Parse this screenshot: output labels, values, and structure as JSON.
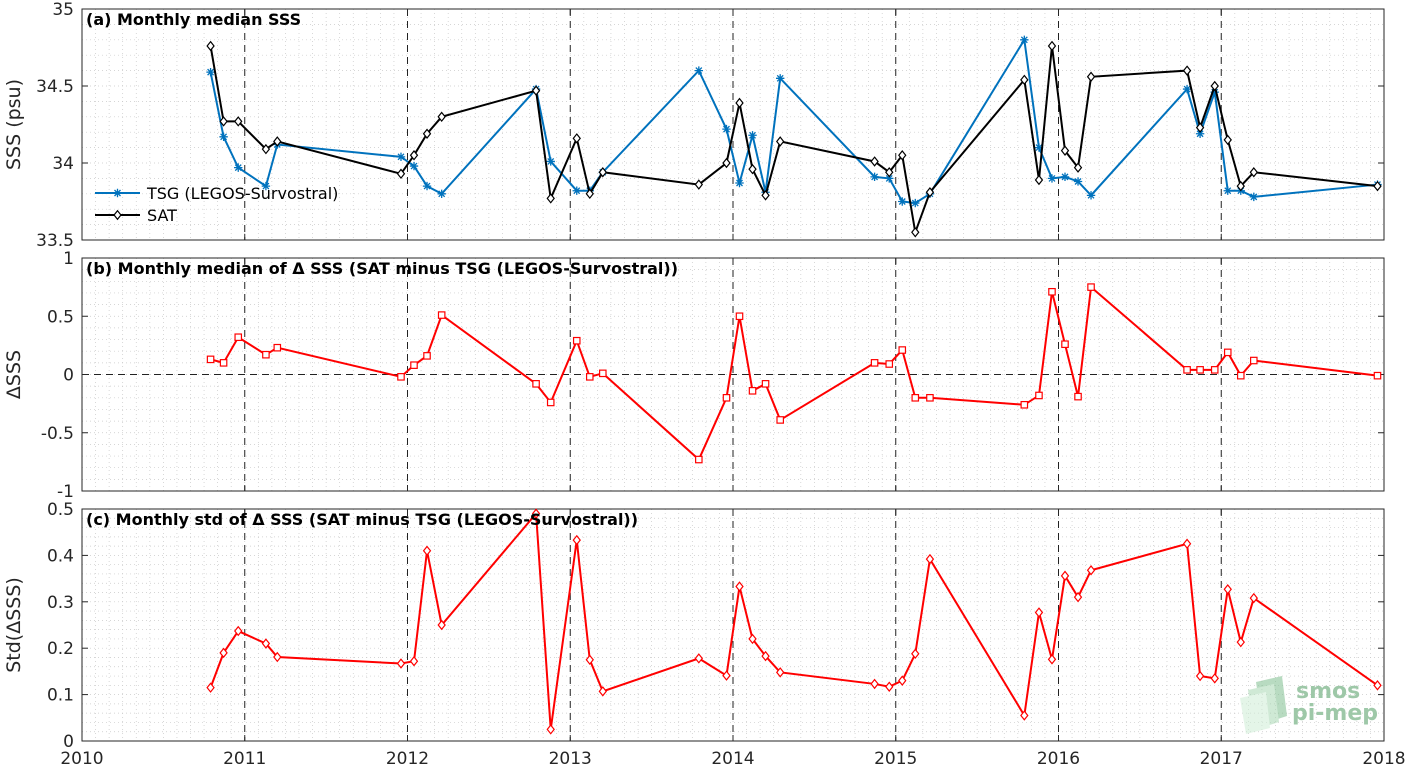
{
  "logo": {
    "line1": "smos",
    "line2": "pi-mep"
  },
  "x_axis": {
    "ticks": [
      2010,
      2011,
      2012,
      2013,
      2014,
      2015,
      2016,
      2017,
      2018
    ],
    "tick_labels": [
      "2010",
      "2011",
      "2012",
      "2013",
      "2014",
      "2015",
      "2016",
      "2017",
      "2018"
    ],
    "xlim": [
      2010,
      2018
    ]
  },
  "chart_data": [
    {
      "type": "line",
      "title": "(a) Monthly median SSS",
      "xlabel": "",
      "ylabel": "SSS (psu)",
      "ylim": [
        33.5,
        35
      ],
      "yticks": [
        33.5,
        34,
        34.5,
        35
      ],
      "ytick_labels": [
        "33.5",
        "34",
        "34.5",
        "35"
      ],
      "grid": true,
      "legend": "left",
      "series": [
        {
          "name": "TSG (LEGOS-Survostral)",
          "color": "#0072BD",
          "marker": "asterisk",
          "x": [
            2010.79,
            2010.87,
            2010.96,
            2011.13,
            2011.2,
            2011.96,
            2012.04,
            2012.12,
            2012.21,
            2012.79,
            2012.88,
            2013.04,
            2013.12,
            2013.2,
            2013.79,
            2013.96,
            2014.04,
            2014.12,
            2014.2,
            2014.29,
            2014.87,
            2014.96,
            2015.04,
            2015.12,
            2015.21,
            2015.79,
            2015.88,
            2015.96,
            2016.04,
            2016.12,
            2016.2,
            2016.79,
            2016.87,
            2016.96,
            2017.04,
            2017.12,
            2017.2,
            2017.96
          ],
          "y": [
            34.59,
            34.17,
            33.97,
            33.85,
            34.12,
            34.04,
            33.98,
            33.85,
            33.8,
            34.48,
            34.01,
            33.82,
            33.82,
            33.94,
            34.6,
            34.22,
            33.87,
            34.18,
            33.81,
            34.55,
            33.91,
            33.9,
            33.75,
            33.74,
            33.8,
            34.8,
            34.1,
            33.9,
            33.91,
            33.88,
            33.79,
            34.48,
            34.19,
            34.46,
            33.82,
            33.82,
            33.78,
            33.86
          ]
        },
        {
          "name": "SAT",
          "color": "#000000",
          "marker": "diamond",
          "x": [
            2010.79,
            2010.87,
            2010.96,
            2011.13,
            2011.2,
            2011.96,
            2012.04,
            2012.12,
            2012.21,
            2012.79,
            2012.88,
            2013.04,
            2013.12,
            2013.2,
            2013.79,
            2013.96,
            2014.04,
            2014.12,
            2014.2,
            2014.29,
            2014.87,
            2014.96,
            2015.04,
            2015.12,
            2015.21,
            2015.79,
            2015.88,
            2015.96,
            2016.04,
            2016.12,
            2016.2,
            2016.79,
            2016.87,
            2016.96,
            2017.04,
            2017.12,
            2017.2,
            2017.96
          ],
          "y": [
            34.76,
            34.27,
            34.27,
            34.09,
            34.14,
            33.93,
            34.05,
            34.19,
            34.3,
            34.47,
            33.77,
            34.16,
            33.8,
            33.94,
            33.86,
            34,
            34.39,
            33.96,
            33.79,
            34.14,
            34.01,
            33.94,
            34.05,
            33.55,
            33.81,
            34.54,
            33.89,
            34.76,
            34.08,
            33.97,
            34.56,
            34.6,
            34.23,
            34.5,
            34.15,
            33.85,
            33.94,
            33.85
          ]
        }
      ]
    },
    {
      "type": "line",
      "title": "(b) Monthly median of Δ SSS (SAT minus TSG (LEGOS-Survostral))",
      "xlabel": "",
      "ylabel": "ΔSSS",
      "ylim": [
        -1,
        1
      ],
      "yticks": [
        -1,
        -0.5,
        0,
        0.5,
        1
      ],
      "ytick_labels": [
        "-1",
        "-0.5",
        "0",
        "0.5",
        "1"
      ],
      "grid": true,
      "zero_line": true,
      "series": [
        {
          "color": "#FF0000",
          "marker": "square",
          "x": [
            2010.79,
            2010.87,
            2010.96,
            2011.13,
            2011.2,
            2011.96,
            2012.04,
            2012.12,
            2012.21,
            2012.79,
            2012.88,
            2013.04,
            2013.12,
            2013.2,
            2013.79,
            2013.96,
            2014.04,
            2014.12,
            2014.2,
            2014.29,
            2014.87,
            2014.96,
            2015.04,
            2015.12,
            2015.21,
            2015.79,
            2015.88,
            2015.96,
            2016.04,
            2016.12,
            2016.2,
            2016.79,
            2016.87,
            2016.96,
            2017.04,
            2017.12,
            2017.2,
            2017.96
          ],
          "y": [
            0.13,
            0.1,
            0.32,
            0.17,
            0.23,
            -0.02,
            0.08,
            0.16,
            0.51,
            -0.08,
            -0.24,
            0.29,
            -0.02,
            0.01,
            -0.73,
            -0.2,
            0.5,
            -0.14,
            -0.08,
            -0.39,
            0.1,
            0.09,
            0.21,
            -0.2,
            -0.2,
            -0.26,
            -0.18,
            0.71,
            0.26,
            -0.19,
            0.75,
            0.04,
            0.04,
            0.04,
            0.19,
            -0.01,
            0.12,
            -0.01
          ]
        }
      ]
    },
    {
      "type": "line",
      "title": "(c) Monthly std of Δ SSS (SAT minus TSG (LEGOS-Survostral))",
      "xlabel": "",
      "ylabel": "Std(ΔSSS)",
      "ylim": [
        0,
        0.5
      ],
      "yticks": [
        0,
        0.1,
        0.2,
        0.3,
        0.4,
        0.5
      ],
      "ytick_labels": [
        "0",
        "0.1",
        "0.2",
        "0.3",
        "0.4",
        "0.5"
      ],
      "grid": true,
      "series": [
        {
          "color": "#FF0000",
          "marker": "diamond",
          "x": [
            2010.79,
            2010.87,
            2010.96,
            2011.13,
            2011.2,
            2011.96,
            2012.04,
            2012.12,
            2012.21,
            2012.79,
            2012.88,
            2013.04,
            2013.12,
            2013.2,
            2013.79,
            2013.96,
            2014.04,
            2014.12,
            2014.2,
            2014.29,
            2014.87,
            2014.96,
            2015.04,
            2015.12,
            2015.21,
            2015.79,
            2015.88,
            2015.96,
            2016.04,
            2016.12,
            2016.2,
            2016.79,
            2016.87,
            2016.96,
            2017.04,
            2017.12,
            2017.2,
            2017.96
          ],
          "y": [
            0.115,
            0.19,
            0.237,
            0.21,
            0.181,
            0.167,
            0.172,
            0.41,
            0.25,
            0.49,
            0.025,
            0.433,
            0.175,
            0.107,
            0.178,
            0.141,
            0.333,
            0.22,
            0.183,
            0.148,
            0.123,
            0.117,
            0.13,
            0.188,
            0.392,
            0.055,
            0.277,
            0.176,
            0.356,
            0.31,
            0.368,
            0.425,
            0.14,
            0.135,
            0.327,
            0.213,
            0.308,
            0.12
          ]
        }
      ]
    }
  ]
}
